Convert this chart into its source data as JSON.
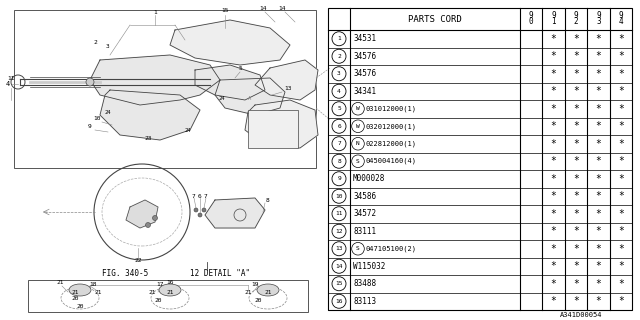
{
  "background_color": "#ffffff",
  "fig_width": 6.4,
  "fig_height": 3.2,
  "parts_header": "PARTS CORD",
  "year_cols": [
    "9\n0",
    "9\n1",
    "9\n2",
    "9\n3",
    "9\n4"
  ],
  "rows": [
    {
      "num": "1",
      "code": "34531",
      "stars": [
        false,
        true,
        true,
        true,
        true
      ]
    },
    {
      "num": "2",
      "code": "34576",
      "stars": [
        false,
        true,
        true,
        true,
        true
      ]
    },
    {
      "num": "3",
      "code": "34576",
      "stars": [
        false,
        true,
        true,
        true,
        true
      ]
    },
    {
      "num": "4",
      "code": "34341",
      "stars": [
        false,
        true,
        true,
        true,
        true
      ]
    },
    {
      "num": "5",
      "code": "W031012000(1)",
      "stars": [
        false,
        true,
        true,
        true,
        true
      ]
    },
    {
      "num": "6",
      "code": "W032012000(1)",
      "stars": [
        false,
        true,
        true,
        true,
        true
      ]
    },
    {
      "num": "7",
      "code": "N022812000(1)",
      "stars": [
        false,
        true,
        true,
        true,
        true
      ]
    },
    {
      "num": "8",
      "code": "S045004160(4)",
      "stars": [
        false,
        true,
        true,
        true,
        true
      ]
    },
    {
      "num": "9",
      "code": "M000028",
      "stars": [
        false,
        true,
        true,
        true,
        true
      ]
    },
    {
      "num": "10",
      "code": "34586",
      "stars": [
        false,
        true,
        true,
        true,
        true
      ]
    },
    {
      "num": "11",
      "code": "34572",
      "stars": [
        false,
        true,
        true,
        true,
        true
      ]
    },
    {
      "num": "12",
      "code": "83111",
      "stars": [
        false,
        true,
        true,
        true,
        true
      ]
    },
    {
      "num": "13",
      "code": "S047105100(2)",
      "stars": [
        false,
        true,
        true,
        true,
        true
      ]
    },
    {
      "num": "14",
      "code": "W115032",
      "stars": [
        false,
        true,
        true,
        true,
        true
      ]
    },
    {
      "num": "15",
      "code": "83488",
      "stars": [
        false,
        true,
        true,
        true,
        true
      ]
    },
    {
      "num": "16",
      "code": "83113",
      "stars": [
        false,
        true,
        true,
        true,
        true
      ]
    }
  ],
  "special_codes": {
    "5": {
      "prefix": "W",
      "rest": "031012000(1)"
    },
    "6": {
      "prefix": "W",
      "rest": "032012000(1)"
    },
    "7": {
      "prefix": "N",
      "rest": "022812000(1)"
    },
    "8": {
      "prefix": "S",
      "rest": "045004160(4)"
    },
    "13": {
      "prefix": "S",
      "rest": "047105100(2)"
    }
  },
  "diagram_label": "FIG. 340-5",
  "detail_label": "12 DETAIL \"A\"",
  "catalog_num": "A341D00054"
}
